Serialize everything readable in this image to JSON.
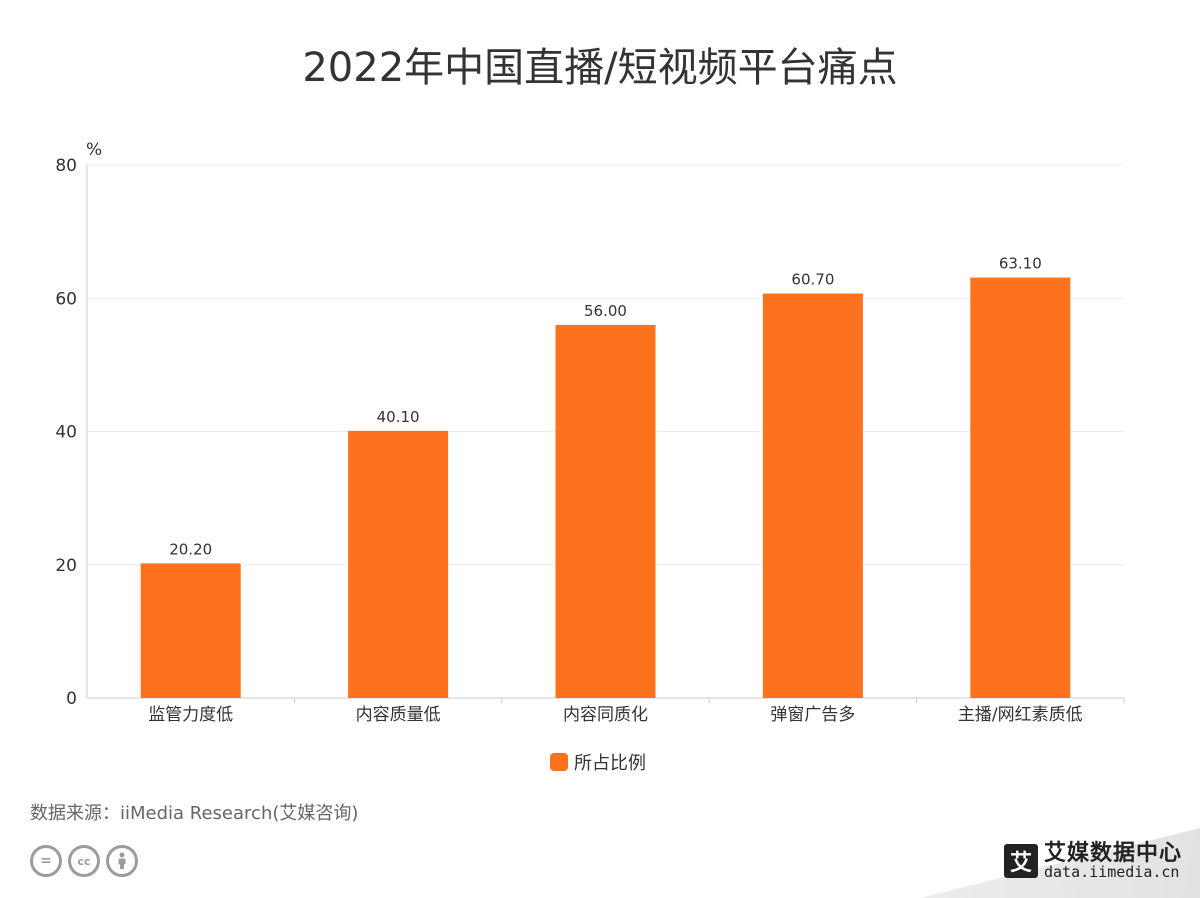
{
  "chart_data": {
    "type": "bar",
    "title": "2022年中国直播/短视频平台痛点",
    "ylabel": "%",
    "ylim": [
      0,
      80
    ],
    "yticks": [
      0,
      20,
      40,
      60,
      80
    ],
    "grid": true,
    "legend_position": "bottom",
    "categories": [
      "监管力度低",
      "内容质量低",
      "内容同质化",
      "弹窗广告多",
      "主播/网红素质低"
    ],
    "series": [
      {
        "name": "所占比例",
        "values": [
          20.2,
          40.1,
          56.0,
          60.7,
          63.1
        ],
        "labels": [
          "20.20",
          "40.10",
          "56.00",
          "60.70",
          "63.10"
        ],
        "color": "#fd731d"
      }
    ]
  },
  "footer": {
    "source": "数据来源：iiMedia Research(艾媒咨询)",
    "brand_logo": "艾",
    "brand_name": "艾媒数据中心",
    "brand_url": "data.iimedia.cn",
    "license_icons": [
      "cc-nd-icon",
      "cc-icon",
      "cc-by-icon"
    ]
  }
}
